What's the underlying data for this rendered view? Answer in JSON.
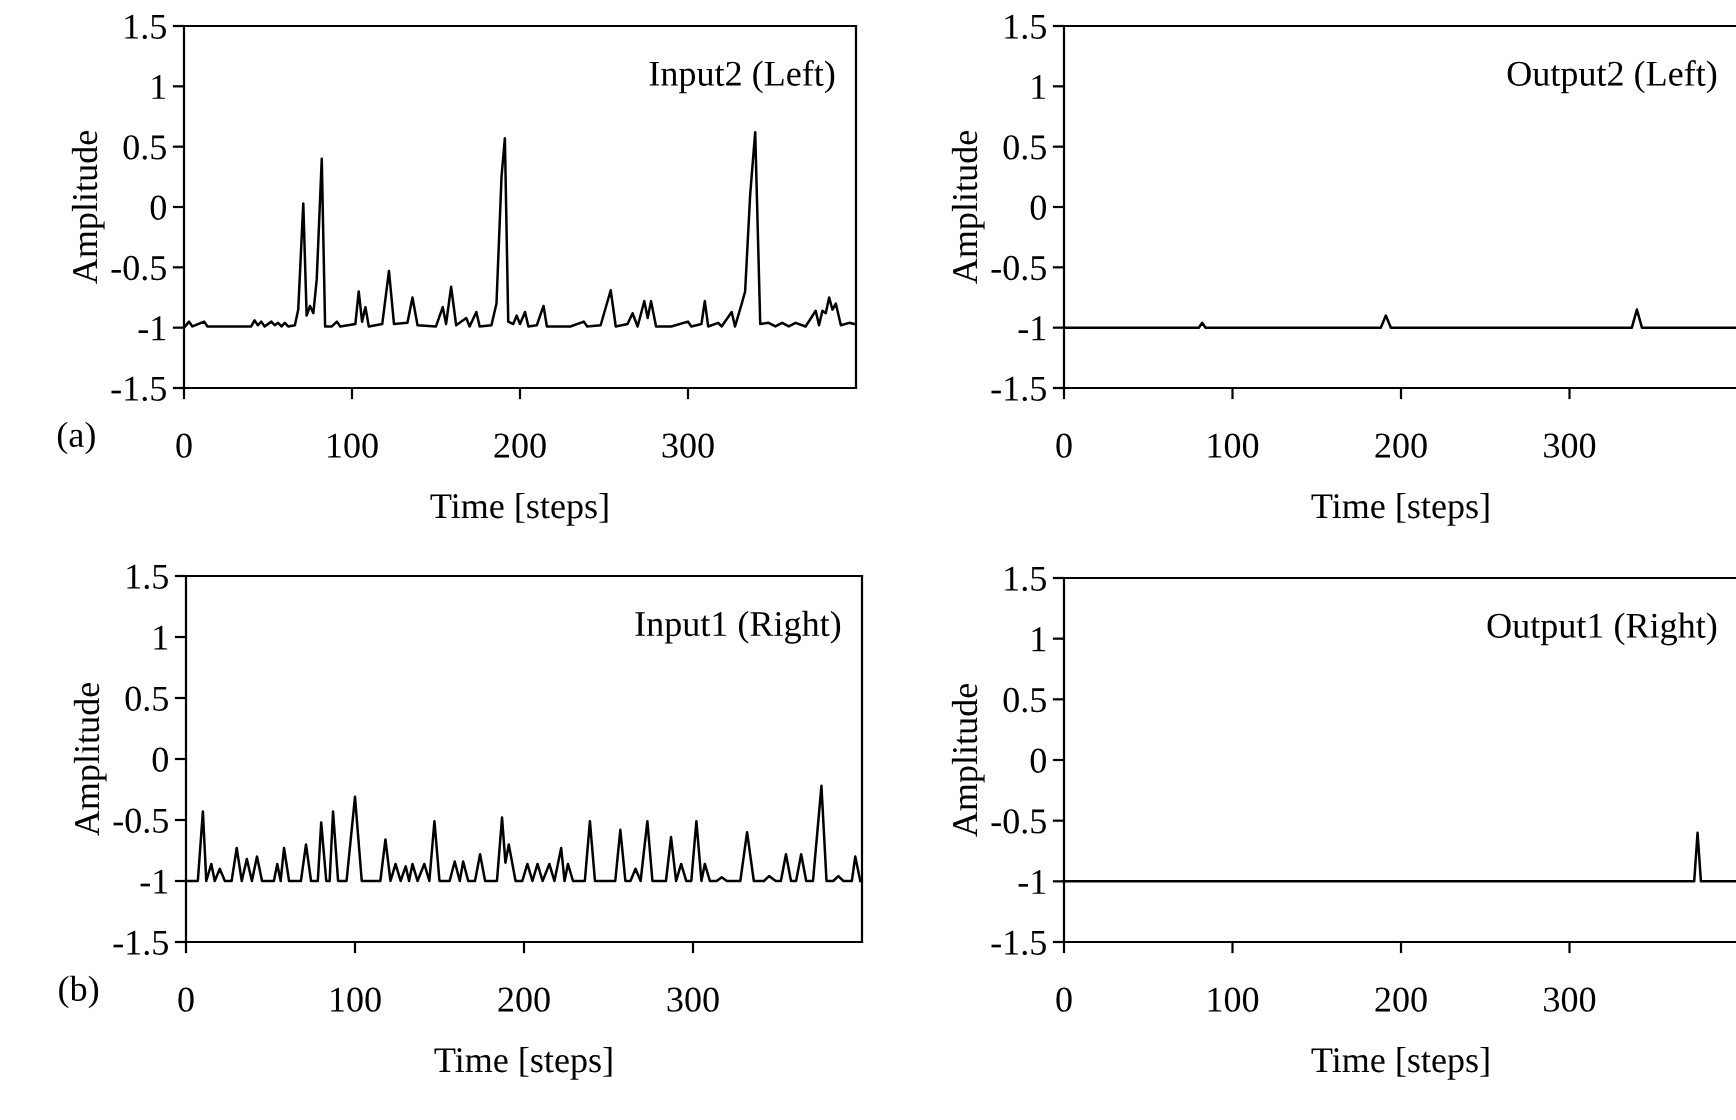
{
  "chart_data": [
    {
      "type": "line",
      "title": "Input2 (Left)",
      "xlabel": "Time [steps]",
      "ylabel": "Amplitude",
      "annotations": [
        "(a)"
      ],
      "color": "#000000",
      "xlim": [
        0,
        400
      ],
      "xticks": [
        0,
        100,
        200,
        300
      ],
      "ylim": [
        -1.5,
        1.5
      ],
      "yticks": [
        -1.5,
        -1,
        -0.5,
        0,
        0.5,
        1,
        1.5
      ],
      "grid": false,
      "legend": false,
      "x": [
        0,
        3,
        5,
        12,
        14,
        40,
        42,
        44,
        46,
        48,
        52,
        54,
        56,
        58,
        60,
        62,
        66,
        68,
        71,
        73,
        75,
        77,
        79,
        82,
        84,
        88,
        91,
        93,
        102,
        104,
        106,
        108,
        110,
        118,
        122,
        125,
        133,
        136,
        139,
        150,
        154,
        156,
        159,
        162,
        168,
        170,
        174,
        176,
        183,
        186,
        189,
        191,
        193,
        196,
        198,
        200,
        203,
        205,
        210,
        214,
        216,
        230,
        238,
        240,
        248,
        254,
        257,
        264,
        267,
        270,
        274,
        276,
        278,
        281,
        290,
        300,
        302,
        308,
        310,
        312,
        318,
        320,
        326,
        328,
        332,
        334,
        337,
        340,
        343,
        348,
        352,
        356,
        360,
        364,
        370,
        376,
        378,
        380,
        382,
        384,
        386,
        388,
        391,
        396,
        399
      ],
      "values": [
        -1,
        -0.95,
        -0.99,
        -0.95,
        -0.99,
        -0.99,
        -0.94,
        -0.98,
        -0.95,
        -0.99,
        -0.95,
        -0.98,
        -0.96,
        -0.99,
        -0.96,
        -0.99,
        -0.98,
        -0.85,
        0.03,
        -0.9,
        -0.82,
        -0.88,
        -0.6,
        0.4,
        -0.99,
        -0.99,
        -0.95,
        -0.99,
        -0.97,
        -0.7,
        -0.95,
        -0.83,
        -0.99,
        -0.97,
        -0.53,
        -0.97,
        -0.96,
        -0.75,
        -0.98,
        -0.99,
        -0.83,
        -0.97,
        -0.66,
        -0.98,
        -0.92,
        -0.99,
        -0.87,
        -0.99,
        -0.98,
        -0.8,
        0.25,
        0.57,
        -0.95,
        -0.97,
        -0.9,
        -0.97,
        -0.87,
        -0.99,
        -0.98,
        -0.82,
        -0.99,
        -0.99,
        -0.95,
        -0.99,
        -0.98,
        -0.69,
        -0.99,
        -0.97,
        -0.88,
        -0.99,
        -0.78,
        -0.92,
        -0.78,
        -0.99,
        -0.99,
        -0.95,
        -0.99,
        -0.97,
        -0.78,
        -0.99,
        -0.96,
        -0.99,
        -0.87,
        -0.99,
        -0.8,
        -0.7,
        0.1,
        0.62,
        -0.97,
        -0.96,
        -0.99,
        -0.96,
        -0.99,
        -0.96,
        -0.99,
        -0.86,
        -0.98,
        -0.86,
        -0.88,
        -0.75,
        -0.85,
        -0.8,
        -0.98,
        -0.96,
        -0.97
      ]
    },
    {
      "type": "line",
      "title": "Output2 (Left)",
      "xlabel": "Time [steps]",
      "ylabel": "Amplitude",
      "color": "#000000",
      "xlim": [
        0,
        400
      ],
      "xticks": [
        0,
        100,
        200,
        300
      ],
      "ylim": [
        -1.5,
        1.5
      ],
      "yticks": [
        -1.5,
        -1,
        -0.5,
        0,
        0.5,
        1,
        1.5
      ],
      "grid": false,
      "legend": false,
      "x": [
        0,
        80,
        82,
        84,
        188,
        191,
        194,
        337,
        340,
        343,
        400
      ],
      "values": [
        -1,
        -1,
        -0.96,
        -1,
        -1,
        -0.9,
        -1,
        -1,
        -0.85,
        -1,
        -1
      ]
    },
    {
      "type": "line",
      "title": "Input1 (Right)",
      "xlabel": "Time [steps]",
      "ylabel": "Amplitude",
      "annotations": [
        "(b)"
      ],
      "color": "#000000",
      "xlim": [
        0,
        400
      ],
      "xticks": [
        0,
        100,
        200,
        300
      ],
      "ylim": [
        -1.5,
        1.5
      ],
      "yticks": [
        -1.5,
        -1,
        -0.5,
        0,
        0.5,
        1,
        1.5
      ],
      "grid": false,
      "legend": false,
      "x": [
        0,
        7,
        10,
        12,
        15,
        17,
        20,
        23,
        27,
        30,
        33,
        36,
        39,
        42,
        45,
        52,
        54,
        56,
        58,
        61,
        68,
        71,
        74,
        78,
        80,
        83,
        85,
        87,
        90,
        95,
        100,
        104,
        115,
        118,
        121,
        124,
        127,
        130,
        132,
        134,
        137,
        141,
        144,
        147,
        150,
        156,
        159,
        162,
        164,
        167,
        171,
        174,
        177,
        184,
        187,
        189,
        191,
        195,
        199,
        202,
        205,
        208,
        211,
        215,
        218,
        222,
        224,
        226,
        229,
        236,
        239,
        242,
        254,
        257,
        260,
        263,
        266,
        269,
        273,
        276,
        284,
        287,
        290,
        293,
        296,
        299,
        302,
        305,
        307,
        310,
        314,
        317,
        320,
        328,
        332,
        336,
        342,
        345,
        349,
        352,
        355,
        358,
        361,
        364,
        367,
        371,
        376,
        379,
        383,
        386,
        389,
        394,
        396,
        399
      ],
      "values": [
        -1,
        -1,
        -0.43,
        -1,
        -0.86,
        -1,
        -0.9,
        -1,
        -1,
        -0.73,
        -1,
        -0.82,
        -1,
        -0.8,
        -1,
        -1,
        -0.86,
        -1,
        -0.73,
        -1,
        -1,
        -0.7,
        -1,
        -1,
        -0.52,
        -1,
        -1,
        -0.43,
        -1,
        -1,
        -0.31,
        -1,
        -1,
        -0.66,
        -1,
        -0.86,
        -1,
        -0.88,
        -1,
        -0.86,
        -1,
        -0.86,
        -1,
        -0.51,
        -1,
        -1,
        -0.84,
        -1,
        -0.84,
        -1,
        -1,
        -0.78,
        -1,
        -1,
        -0.48,
        -0.85,
        -0.7,
        -1,
        -1,
        -0.86,
        -1,
        -0.86,
        -1,
        -0.86,
        -1,
        -0.73,
        -1,
        -0.86,
        -1,
        -1,
        -0.51,
        -1,
        -1,
        -0.58,
        -1,
        -1,
        -0.9,
        -1,
        -0.51,
        -1,
        -1,
        -0.64,
        -1,
        -0.86,
        -1,
        -1,
        -0.51,
        -1,
        -0.86,
        -1,
        -1,
        -0.97,
        -1,
        -1,
        -0.6,
        -1,
        -1,
        -0.96,
        -1,
        -1,
        -0.78,
        -1,
        -1,
        -0.78,
        -1,
        -1,
        -0.22,
        -1,
        -1,
        -0.96,
        -1,
        -1,
        -0.8,
        -1
      ]
    },
    {
      "type": "line",
      "title": "Output1 (Right)",
      "xlabel": "Time [steps]",
      "ylabel": "Amplitude",
      "color": "#000000",
      "xlim": [
        0,
        400
      ],
      "xticks": [
        0,
        100,
        200,
        300
      ],
      "ylim": [
        -1.5,
        1.5
      ],
      "yticks": [
        -1.5,
        -1,
        -0.5,
        0,
        0.5,
        1,
        1.5
      ],
      "grid": false,
      "legend": false,
      "x": [
        0,
        374,
        376,
        378,
        400
      ],
      "values": [
        -1,
        -1,
        -0.6,
        -1,
        -1
      ]
    }
  ]
}
